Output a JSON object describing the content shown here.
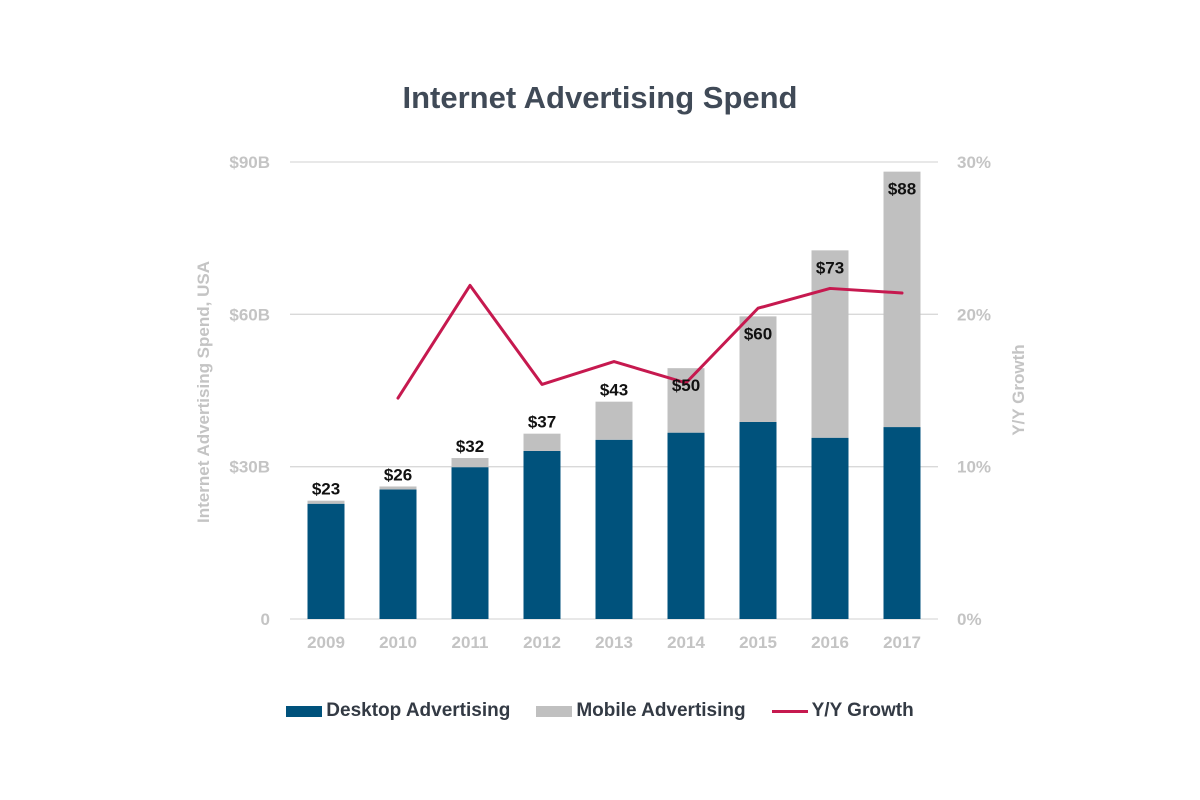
{
  "colors": {
    "desktop": "#00527c",
    "mobile": "#c0c0c0",
    "growth": "#c6194f",
    "grid": "#d9d9d9",
    "axis_text": "#c4c4c4"
  },
  "chart_data": {
    "type": "bar",
    "stacked": true,
    "title": "Internet Advertising Spend",
    "ylabel": "Internet Advertising Spend, USA",
    "y2label": "Y/Y Growth",
    "xlabel": "",
    "categories": [
      "2009",
      "2010",
      "2011",
      "2012",
      "2013",
      "2014",
      "2015",
      "2016",
      "2017"
    ],
    "ylim": [
      0,
      90
    ],
    "y2lim": [
      0,
      30
    ],
    "y_ticks": [
      {
        "value": 0,
        "label": "0"
      },
      {
        "value": 30,
        "label": "$30B"
      },
      {
        "value": 60,
        "label": "$60B"
      },
      {
        "value": 90,
        "label": "$90B"
      }
    ],
    "y2_ticks": [
      {
        "value": 0,
        "label": "0%"
      },
      {
        "value": 10,
        "label": "10%"
      },
      {
        "value": 20,
        "label": "20%"
      },
      {
        "value": 30,
        "label": "30%"
      }
    ],
    "grid": true,
    "legend_position": "bottom",
    "series": [
      {
        "name": "Desktop Advertising",
        "kind": "bar",
        "axis": "left",
        "values": [
          22.7,
          25.5,
          29.9,
          33.1,
          35.3,
          36.7,
          38.8,
          35.7,
          37.8
        ]
      },
      {
        "name": "Mobile Advertising",
        "kind": "bar",
        "axis": "left",
        "values": [
          0.6,
          0.6,
          1.8,
          3.4,
          7.5,
          12.7,
          20.8,
          36.9,
          50.3
        ]
      },
      {
        "name": "Y/Y Growth",
        "kind": "line",
        "axis": "right",
        "values": [
          null,
          14.5,
          21.9,
          15.4,
          16.9,
          15.5,
          20.4,
          21.7,
          21.4
        ]
      }
    ],
    "totals_labels": [
      "$23",
      "$26",
      "$32",
      "$37",
      "$43",
      "$50",
      "$60",
      "$73",
      "$88"
    ]
  }
}
